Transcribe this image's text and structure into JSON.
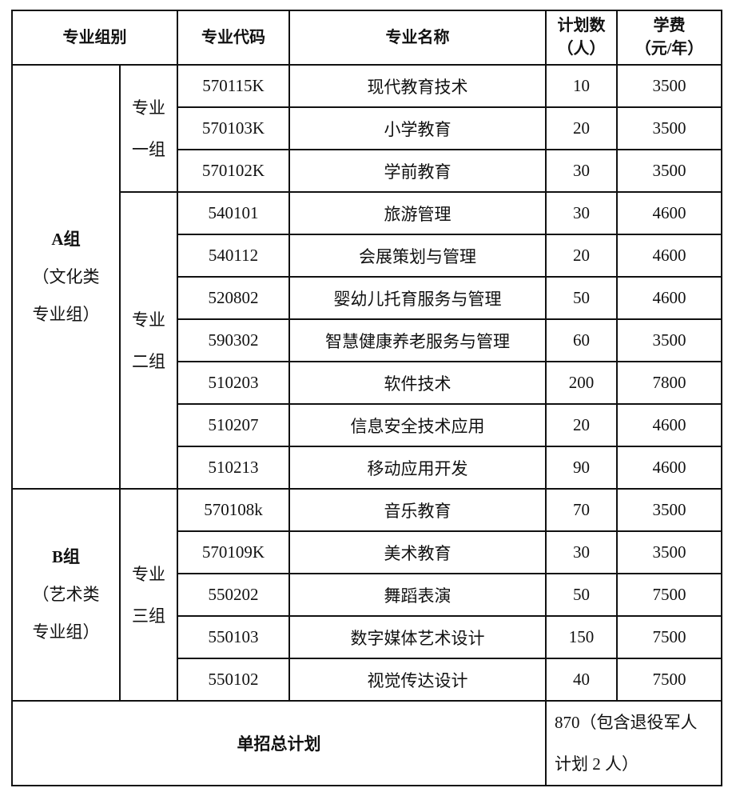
{
  "headers": {
    "group": "专业组别",
    "code": "专业代码",
    "name": "专业名称",
    "plan": [
      "计划数",
      "（人）"
    ],
    "fee": [
      "学费",
      "（元/年）"
    ]
  },
  "groups": [
    {
      "lines": [
        "A组",
        "（文化类",
        "专业组）"
      ],
      "subgroups": [
        {
          "lines": [
            "专业",
            "一组"
          ],
          "rows": [
            {
              "code": "570115K",
              "name": "现代教育技术",
              "plan": "10",
              "fee": "3500"
            },
            {
              "code": "570103K",
              "name": "小学教育",
              "plan": "20",
              "fee": "3500"
            },
            {
              "code": "570102K",
              "name": "学前教育",
              "plan": "30",
              "fee": "3500"
            }
          ]
        },
        {
          "lines": [
            "专业",
            "二组"
          ],
          "rows": [
            {
              "code": "540101",
              "name": "旅游管理",
              "plan": "30",
              "fee": "4600"
            },
            {
              "code": "540112",
              "name": "会展策划与管理",
              "plan": "20",
              "fee": "4600"
            },
            {
              "code": "520802",
              "name": "婴幼儿托育服务与管理",
              "plan": "50",
              "fee": "4600"
            },
            {
              "code": "590302",
              "name": "智慧健康养老服务与管理",
              "plan": "60",
              "fee": "3500"
            },
            {
              "code": "510203",
              "name": "软件技术",
              "plan": "200",
              "fee": "7800"
            },
            {
              "code": "510207",
              "name": "信息安全技术应用",
              "plan": "20",
              "fee": "4600"
            },
            {
              "code": "510213",
              "name": "移动应用开发",
              "plan": "90",
              "fee": "4600"
            }
          ]
        }
      ]
    },
    {
      "lines": [
        "B组",
        "（艺术类",
        "专业组）"
      ],
      "subgroups": [
        {
          "lines": [
            "专业",
            "三组"
          ],
          "rows": [
            {
              "code": "570108k",
              "name": "音乐教育",
              "plan": "70",
              "fee": "3500"
            },
            {
              "code": "570109K",
              "name": "美术教育",
              "plan": "30",
              "fee": "3500"
            },
            {
              "code": "550202",
              "name": "舞蹈表演",
              "plan": "50",
              "fee": "7500"
            },
            {
              "code": "550103",
              "name": "数字媒体艺术设计",
              "plan": "150",
              "fee": "7500"
            },
            {
              "code": "550102",
              "name": "视觉传达设计",
              "plan": "40",
              "fee": "7500"
            }
          ]
        }
      ]
    }
  ],
  "footer": {
    "label": "单招总计划",
    "value_lines": [
      "870（包含退役军人",
      "计划 2 人）"
    ]
  }
}
